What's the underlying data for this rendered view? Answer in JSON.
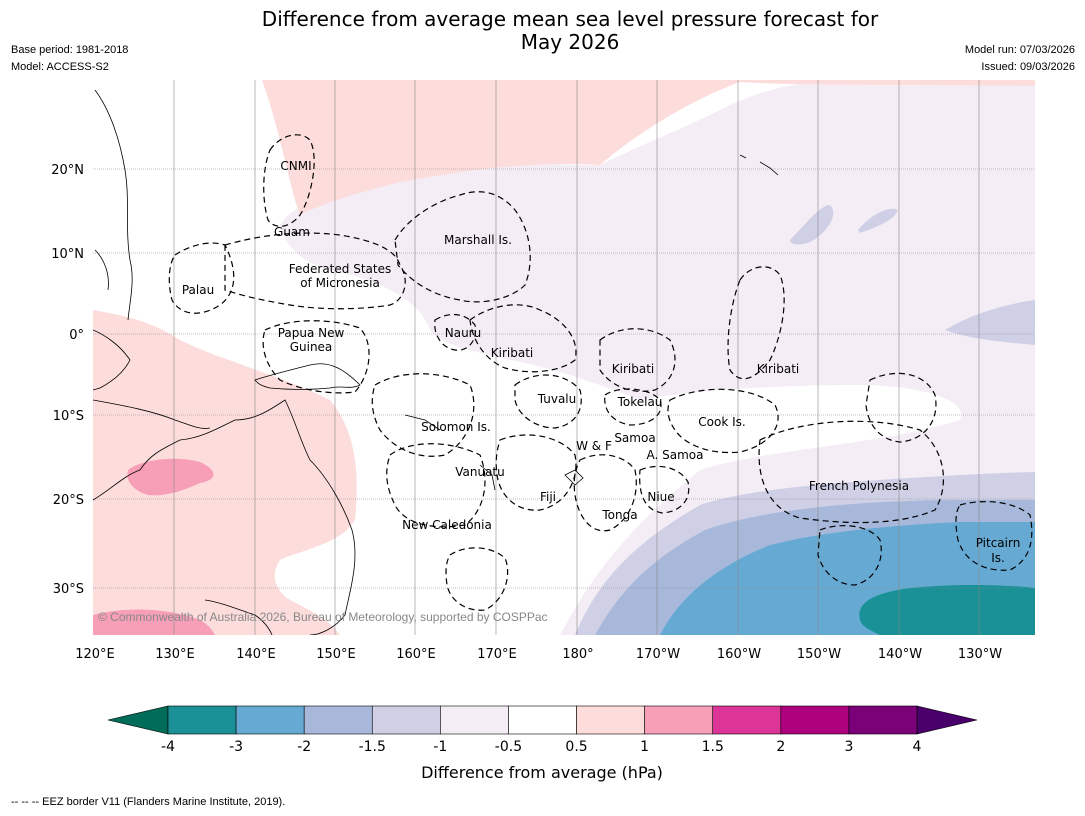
{
  "header": {
    "title_line1": "Difference from average mean sea level pressure forecast for",
    "title_line2": "May 2026",
    "base_period": "Base period: 1981-2018",
    "model": "Model: ACCESS-S2",
    "model_run": "Model run: 07/03/2026",
    "issued": "Issued: 09/03/2026"
  },
  "map": {
    "lon_labels": [
      "120°E",
      "130°E",
      "140°E",
      "150°E",
      "160°E",
      "170°E",
      "180°",
      "170°W",
      "160°W",
      "150°W",
      "140°W",
      "130°W"
    ],
    "lat_labels": [
      "20°N",
      "10°N",
      "0°",
      "10°S",
      "20°S",
      "30°S"
    ],
    "copyright": "© Commonwealth of Australia 2026, Bureau of Meteorology, supported by COSPPac",
    "regions": {
      "cnmi": "CNMI",
      "guam": "Guam",
      "palau": "Palau",
      "fsm_1": "Federated States",
      "fsm_2": "of Micronesia",
      "marshall": "Marshall Is.",
      "png_1": "Papua New",
      "png_2": "Guinea",
      "nauru": "Nauru",
      "kiribati_w": "Kiribati",
      "kiribati_c": "Kiribati",
      "kiribati_e": "Kiribati",
      "tuvalu": "Tuvalu",
      "tokelau": "Tokelau",
      "solomon": "Solomon Is.",
      "wf": "W & F",
      "samoa": "Samoa",
      "asamoa": "A. Samoa",
      "cook": "Cook Is.",
      "vanuatu": "Vanuatu",
      "fiji": "Fiji",
      "niue": "Niue",
      "tonga": "Tonga",
      "french_poly": "French Polynesia",
      "newcal": "New Caledonia",
      "pitcairn_1": "Pitcairn",
      "pitcairn_2": "Is."
    }
  },
  "colorbar": {
    "ticks": [
      "-4",
      "-3",
      "-2",
      "-1.5",
      "-1",
      "-0.5",
      "0.5",
      "1",
      "1.5",
      "2",
      "3",
      "4"
    ],
    "colors": [
      "#1a9196",
      "#66aad4",
      "#a7b8da",
      "#cfd0e6",
      "#f4edf5",
      "#ffffff",
      "#fddcdc",
      "#f89fb8",
      "#dd3498",
      "#ae017e",
      "#7a0177"
    ],
    "under_color": "#016c59",
    "over_color": "#49006a",
    "label": "Difference from average (hPa)"
  },
  "footer": {
    "eez_note": "--  --  -- EEZ border V11 (Flanders Marine Institute, 2019)."
  }
}
